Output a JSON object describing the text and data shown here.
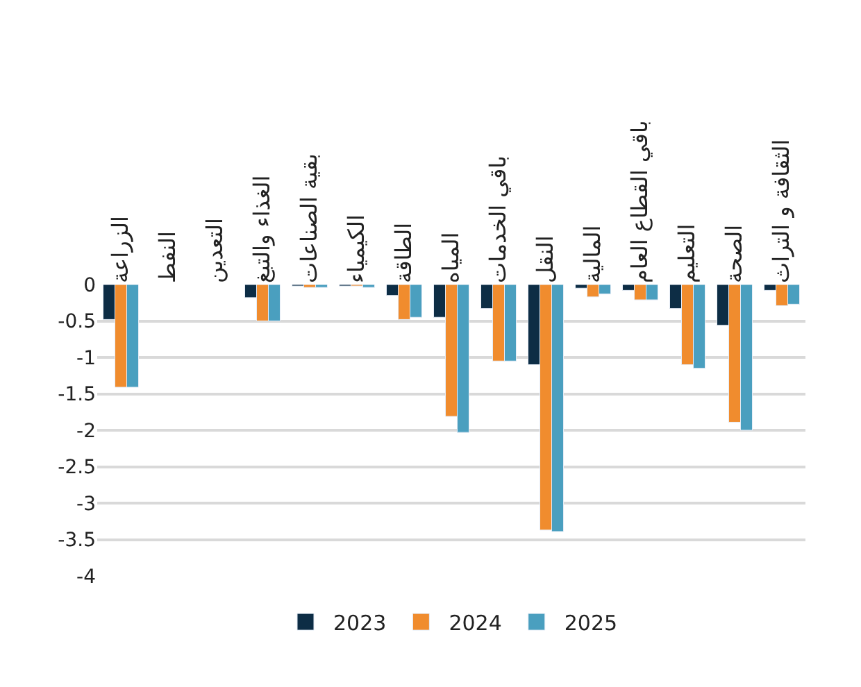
{
  "chart_data": {
    "type": "bar",
    "categories": [
      "الزراعة",
      "النفط",
      "التعدين",
      "الغذاء والتبغ",
      "بقية الصناعات",
      "الكيمياء",
      "الطاقة",
      "المياه",
      "باقي الخدمات",
      "النقل",
      "المالية",
      "باقي القطاع العام",
      "التعليم",
      "الصحة",
      "الثقافة و التراث"
    ],
    "series": [
      {
        "name": "2023",
        "color": "#0d2d45",
        "values": [
          -0.48,
          null,
          null,
          -0.18,
          -0.02,
          -0.02,
          -0.15,
          -0.45,
          -0.33,
          -1.1,
          -0.05,
          -0.08,
          -0.33,
          -0.56,
          -0.08
        ]
      },
      {
        "name": "2024",
        "color": "#f08c2e",
        "values": [
          -1.41,
          null,
          null,
          -0.5,
          -0.04,
          -0.02,
          -0.48,
          -1.81,
          -1.05,
          -3.37,
          -0.17,
          -0.21,
          -1.1,
          -1.89,
          -0.29
        ]
      },
      {
        "name": "2025",
        "color": "#4a9fbf",
        "values": [
          -1.41,
          null,
          null,
          -0.5,
          -0.04,
          -0.04,
          -0.45,
          -2.03,
          -1.05,
          -3.39,
          -0.13,
          -0.21,
          -1.15,
          -2.0,
          -0.27
        ]
      }
    ],
    "ylim": [
      -4,
      0
    ],
    "yticks": [
      0,
      -0.5,
      -1,
      -1.5,
      -2,
      -2.5,
      -3,
      -3.5,
      -4
    ],
    "grid": "y",
    "legend": "bottom"
  }
}
